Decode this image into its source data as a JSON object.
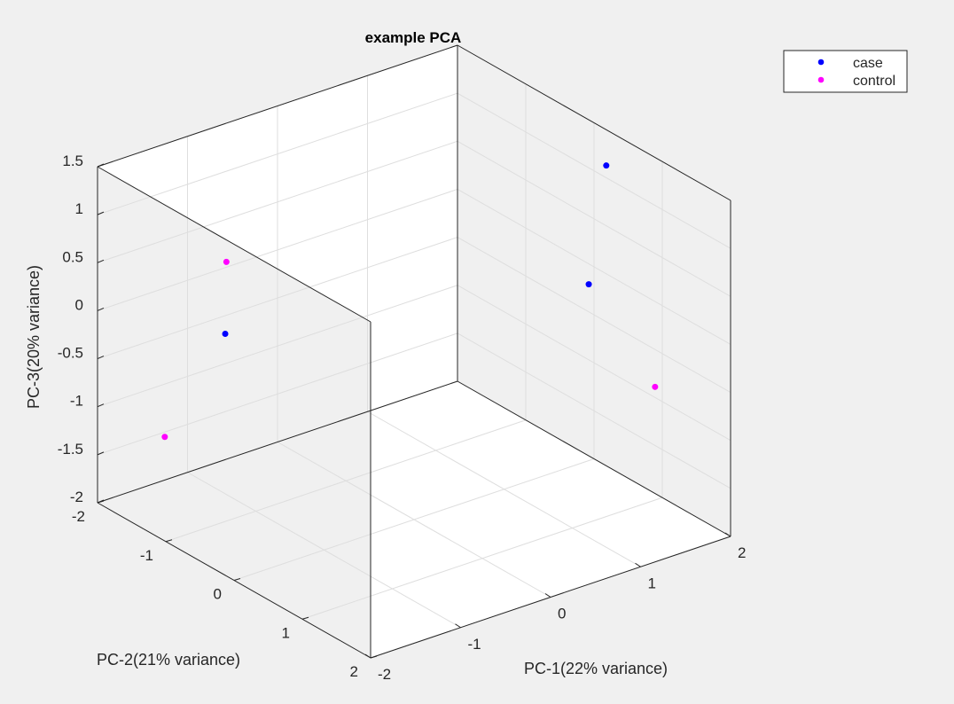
{
  "chart_data": {
    "type": "scatter",
    "title": "example PCA",
    "xlabel": "PC-1(22% variance)",
    "ylabel": "PC-2(21% variance)",
    "zlabel": "PC-3(20% variance)",
    "xlim": [
      -2,
      2
    ],
    "ylim": [
      -2,
      2
    ],
    "zlim": [
      -2,
      1.5
    ],
    "x_ticks": [
      "-2",
      "-1",
      "0",
      "1",
      "2"
    ],
    "y_ticks": [
      "-2",
      "-1",
      "0",
      "1",
      "2"
    ],
    "z_ticks": [
      "-2",
      "-1.5",
      "-1",
      "-0.5",
      "0",
      "0.5",
      "1",
      "1.5"
    ],
    "grid": true,
    "box": true,
    "view": "3d",
    "legend_position": "top-right",
    "series": [
      {
        "name": "case",
        "color": "#0000ff",
        "points": [
          {
            "x": 1.62,
            "y": 0.68,
            "z": 1.45
          },
          {
            "x": 1.16,
            "y": 1.03,
            "z": 0.5
          },
          {
            "x": -1.37,
            "y": -0.96,
            "z": -0.02
          }
        ]
      },
      {
        "name": "control",
        "color": "#ff00ff",
        "points": [
          {
            "x": -1.41,
            "y": -0.89,
            "z": 0.77
          },
          {
            "x": 1.73,
            "y": 1.25,
            "z": -0.66
          },
          {
            "x": -1.23,
            "y": -2.03,
            "z": -1.57
          }
        ]
      }
    ]
  }
}
